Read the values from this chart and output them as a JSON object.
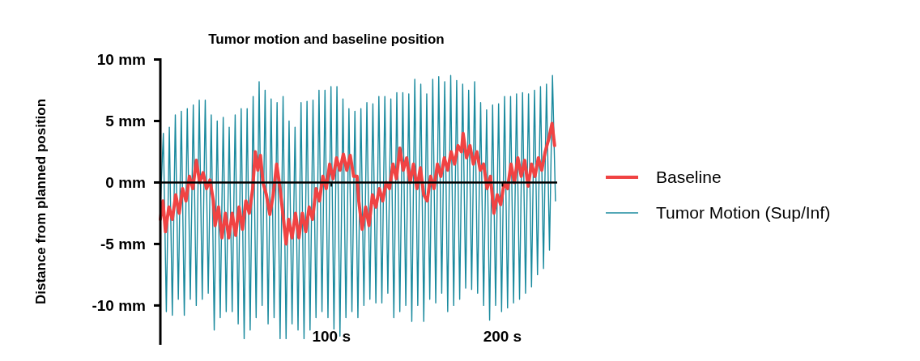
{
  "chart_data": {
    "type": "line",
    "title": "Tumor motion and baseline position",
    "ylabel": "Distance from planned position",
    "xlim": [
      0,
      232
    ],
    "xticks": [
      {
        "value": 100,
        "label": "100 s"
      },
      {
        "value": 200,
        "label": "200 s"
      }
    ],
    "ylim": [
      -13.2,
      10.1
    ],
    "yticks": [
      {
        "value": -10,
        "label": "-10 mm"
      },
      {
        "value": -5,
        "label": "-5 mm"
      },
      {
        "value": 0,
        "label": "0 mm"
      },
      {
        "value": 5,
        "label": "5 mm"
      },
      {
        "value": 10,
        "label": "10 mm"
      }
    ],
    "legend": "right",
    "marker": "none",
    "line_style": "solid",
    "series": [
      {
        "name": "Baseline",
        "color": "#f04343",
        "x": [
          0,
          1.5,
          3,
          5,
          7,
          9,
          11,
          13,
          15,
          17,
          19,
          21,
          23,
          25,
          27,
          29,
          31,
          32,
          34,
          36,
          38,
          40,
          42,
          44,
          46,
          48,
          50,
          52,
          54,
          55.5,
          57,
          58.5,
          60,
          62,
          64,
          66,
          68,
          70,
          72,
          73.5,
          75,
          77,
          79,
          81,
          83,
          85,
          87,
          89,
          91,
          93,
          95,
          97,
          99,
          101,
          103,
          105,
          107,
          109,
          111,
          113,
          115,
          116,
          118,
          120,
          122,
          124,
          126,
          128,
          130,
          132,
          134,
          136,
          138,
          140,
          142,
          144,
          146,
          148,
          150,
          152,
          154,
          156,
          158,
          160,
          162,
          164,
          166,
          168,
          170,
          172,
          174,
          176,
          177,
          179,
          181,
          183,
          185,
          187,
          189,
          191,
          193,
          195,
          197,
          199,
          201,
          203,
          205,
          207,
          209,
          211,
          213,
          215,
          217,
          219,
          221,
          223,
          225,
          227,
          229,
          230.5
        ],
        "values": [
          -3,
          -1.5,
          -4,
          -2,
          -3,
          -1,
          -2.5,
          -0.5,
          -1.5,
          0.5,
          -0.5,
          1.8,
          0,
          0.8,
          -0.5,
          0.2,
          -1.5,
          -3.5,
          -2,
          -4.5,
          -2.5,
          -4.5,
          -2.5,
          -4.3,
          -2,
          -3.8,
          -1.5,
          -2.5,
          -0.5,
          2.5,
          1,
          2.2,
          0,
          -1,
          -2.6,
          -1,
          1.5,
          -0.5,
          -3,
          -5,
          -3,
          -4.5,
          -2.5,
          -4.5,
          -2.5,
          -4,
          -2,
          -3,
          -0.5,
          -1.5,
          0.5,
          -0.5,
          1.5,
          0.3,
          2,
          1,
          2.3,
          1,
          2.2,
          0.5,
          0.5,
          -1.5,
          -3.8,
          -2,
          -3.5,
          -1,
          -2,
          -0.5,
          -1.5,
          0,
          -0.5,
          1.5,
          0.3,
          2.8,
          1,
          2,
          0,
          1.5,
          -0.5,
          1.2,
          -1,
          -1.5,
          0.5,
          -0.5,
          1.5,
          0.5,
          2,
          1,
          2.5,
          1.5,
          3,
          2.5,
          4,
          2,
          3,
          1.5,
          2.5,
          1,
          1.5,
          -0.5,
          0.5,
          -2.5,
          -1,
          -1.8,
          0,
          -0.5,
          1.5,
          0,
          2,
          0.5,
          1.8,
          -0.3,
          1.5,
          0.5,
          2,
          1,
          2.5,
          3.5,
          4.8,
          3
        ]
      },
      {
        "name": "Tumor Motion (Sup/Inf)",
        "color": "#1a8a9e",
        "x": [
          0,
          1.75,
          3.5,
          5.25,
          7,
          8.75,
          10.5,
          12.25,
          14,
          15.75,
          17.5,
          19.25,
          21,
          22.75,
          24.5,
          26.25,
          28,
          29.75,
          31.5,
          33.25,
          35,
          36.75,
          38.5,
          40.25,
          42,
          43.75,
          45.5,
          47.25,
          49,
          50.75,
          52.5,
          54.25,
          56,
          57.75,
          59.5,
          61.25,
          63,
          64.75,
          66.5,
          68.25,
          70,
          71.75,
          73.5,
          75.25,
          77,
          78.75,
          80.5,
          82.25,
          84,
          85.75,
          87.5,
          89.25,
          91,
          92.75,
          94.5,
          96.25,
          98,
          99.75,
          101.5,
          103.25,
          105,
          106.75,
          108.5,
          110.25,
          112,
          113.75,
          115.5,
          117.25,
          119,
          120.75,
          122.5,
          124.25,
          126,
          127.75,
          129.5,
          131.25,
          133,
          134.75,
          136.5,
          138.25,
          140,
          141.75,
          143.5,
          145.25,
          147,
          148.75,
          150.5,
          152.25,
          154,
          155.75,
          157.5,
          159.25,
          161,
          162.75,
          164.5,
          166.25,
          168,
          169.75,
          171.5,
          173.25,
          175,
          176.75,
          178.5,
          180.25,
          182,
          183.75,
          185.5,
          187.25,
          189,
          190.75,
          192.5,
          194.25,
          196,
          197.75,
          199.5,
          201.25,
          203,
          204.75,
          206.5,
          208.25,
          210,
          211.75,
          213.5,
          215.25,
          217,
          218.75,
          220.5,
          222.25,
          224,
          225.75,
          227.5,
          229.25,
          231
        ],
        "values": [
          -2,
          4,
          -10.5,
          4.5,
          -10.8,
          5.5,
          -9.5,
          5.8,
          -10.8,
          6,
          -9.5,
          6.3,
          -10,
          6.7,
          -9.5,
          6.7,
          -9,
          5.5,
          -12,
          5,
          -11,
          5.3,
          -10.5,
          4.5,
          -10.5,
          5.5,
          -11.5,
          6,
          -12.7,
          6,
          -12,
          7,
          -11,
          8.2,
          -10,
          7.5,
          -11.5,
          6.8,
          -11,
          6.5,
          -12.7,
          7,
          -12.7,
          5,
          -11.5,
          4.5,
          -12,
          6.5,
          -12.7,
          6.6,
          -12,
          6.7,
          -11,
          7.5,
          -10.5,
          7.5,
          -11,
          7.8,
          -12,
          7.8,
          -12.5,
          6.8,
          -11,
          6,
          -10.5,
          5.8,
          -11,
          6,
          -10,
          6.5,
          -9.5,
          6.4,
          -9.8,
          7,
          -9.8,
          7,
          -9,
          6.8,
          -11,
          7.3,
          -10.5,
          7.3,
          -10,
          7.2,
          -11.3,
          8.4,
          -10,
          8,
          -11.3,
          7.2,
          -9.5,
          8.4,
          -9.8,
          8.6,
          -9,
          8.2,
          -10.5,
          8.7,
          -10,
          8.3,
          -9.5,
          8,
          -8.6,
          7.5,
          -8.7,
          8.2,
          -9,
          6.5,
          -10,
          5.9,
          -11.2,
          6.3,
          -10,
          6.4,
          -10.5,
          7,
          -10.2,
          7,
          -9.8,
          7.2,
          -9.5,
          7.3,
          -9,
          7.2,
          -8.5,
          7.5,
          -7.5,
          7.8,
          -7,
          8,
          -5.5,
          8.7,
          -1.5
        ]
      }
    ]
  }
}
